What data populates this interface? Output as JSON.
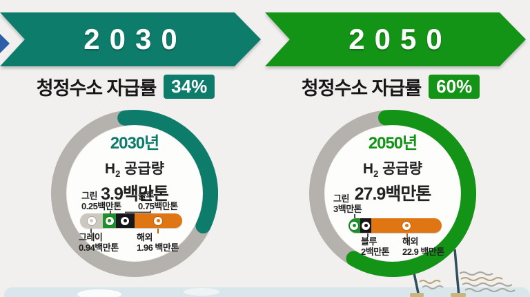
{
  "page": {
    "background_color": "#f1f0ee",
    "band_color": "#d9e6ec"
  },
  "colors": {
    "teal": "#0e7c6b",
    "green": "#149417",
    "gray_ring": "#b5b2ae",
    "bar_gray": "#ccc8bf",
    "bar_green": "#1f8f2c",
    "bar_blue": "#17171b",
    "bar_overseas": "#e07513",
    "prev_arrow_blue": "#2d5fa8"
  },
  "panels": [
    {
      "banner_label": "2030",
      "rate_label": "청정수소 자급률",
      "supply_h": "H",
      "supply_sub": "2",
      "supply_rest": " 공급량"
    },
    {
      "banner_label": "2050",
      "rate_label": "청정수소 자급률",
      "supply_h": "H",
      "supply_sub": "2",
      "supply_rest": " 공급량"
    }
  ],
  "chart_data": [
    {
      "type": "donut",
      "title": "2030년",
      "self_sufficiency_percent": 34,
      "percent_label": "34%",
      "h2_supply_total_million_tons": 3.9,
      "total_label": "3.9백만톤",
      "units": "백만톤",
      "breakdown": [
        {
          "key": "gray",
          "name": "그레이",
          "value": 0.94,
          "amount_label": "0.94백만톤"
        },
        {
          "key": "green",
          "name": "그린",
          "value": 0.25,
          "amount_label": "0.25백만톤"
        },
        {
          "key": "blue",
          "name": "블루",
          "value": 0.75,
          "amount_label": "0.75백만톤"
        },
        {
          "key": "overseas",
          "name": "해외",
          "value": 1.96,
          "amount_label": "1.96 백만톤"
        }
      ]
    },
    {
      "type": "donut",
      "title": "2050년",
      "self_sufficiency_percent": 60,
      "percent_label": "60%",
      "h2_supply_total_million_tons": 27.9,
      "total_label": "27.9백만톤",
      "units": "백만톤",
      "breakdown": [
        {
          "key": "green",
          "name": "그린",
          "value": 3,
          "amount_label": "3백만톤"
        },
        {
          "key": "blue",
          "name": "블루",
          "value": 2,
          "amount_label": "2백만톤"
        },
        {
          "key": "overseas",
          "name": "해외",
          "value": 22.9,
          "amount_label": "22.9 백만톤"
        }
      ]
    }
  ]
}
